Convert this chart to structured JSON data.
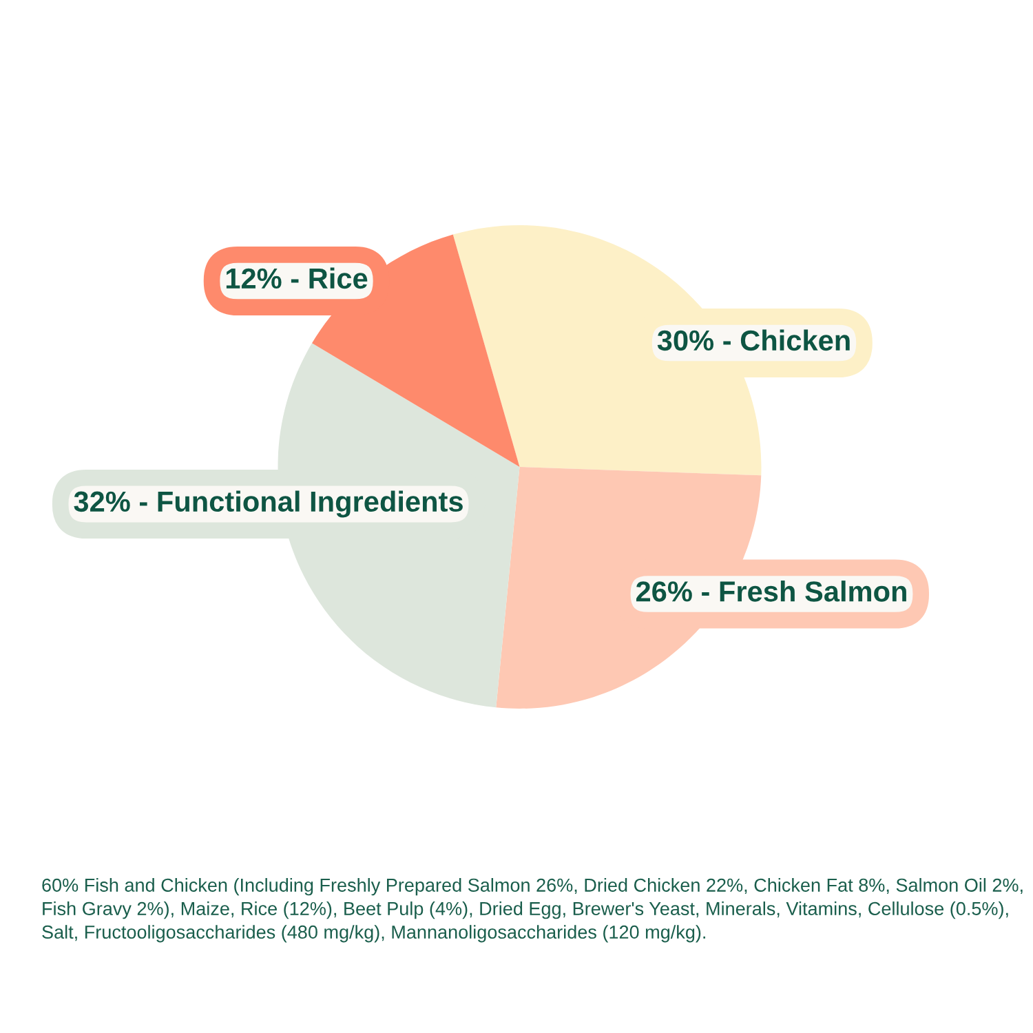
{
  "chart_data": {
    "type": "pie",
    "categories": [
      "Chicken",
      "Fresh Salmon",
      "Functional Ingredients",
      "Rice"
    ],
    "values": [
      30,
      26,
      32,
      12
    ],
    "value_labels": [
      "30%",
      "26%",
      "32%",
      "12%"
    ],
    "colors": [
      "#fdf0c7",
      "#fec8b3",
      "#dde6dc",
      "#fe8a6c"
    ],
    "legend": false,
    "annotations": [
      "60% Fish and Chicken (Including Freshly Prepared Salmon 26%, Dried Chicken 22%, Chicken Fat 8%, Salmon Oil 2%, Fish Gravy 2%), Maize, Rice (12%), Beet Pulp (4%), Dried Egg, Brewer's Yeast, Minerals, Vitamins, Cellulose (0.5%), Salt, Fructooligosaccharides (480 mg/kg), Mannanoligosaccharides (120 mg/kg)."
    ]
  }
}
